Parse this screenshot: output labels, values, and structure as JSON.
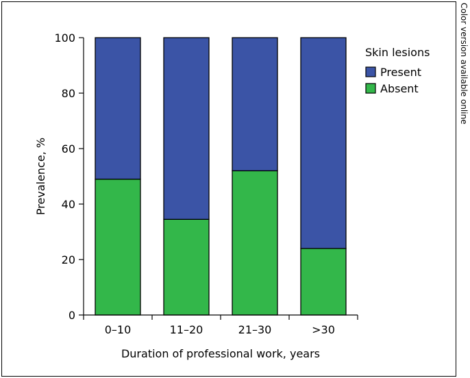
{
  "side_note": "Color version available online",
  "chart_data": {
    "type": "bar",
    "stacked": true,
    "categories": [
      "0–10",
      "11–20",
      "21–30",
      ">30"
    ],
    "series": [
      {
        "name": "Absent",
        "color": "#33b74a",
        "values": [
          49,
          34.5,
          52,
          24
        ]
      },
      {
        "name": "Present",
        "color": "#3b54a6",
        "values": [
          51,
          65.5,
          48,
          76
        ]
      }
    ],
    "title": "",
    "xlabel": "Duration of professional work, years",
    "ylabel": "Prevalence, %",
    "ylim": [
      0,
      100
    ],
    "yticks": [
      0,
      20,
      40,
      60,
      80,
      100
    ],
    "grid": false,
    "legend": {
      "title": "Skin lesions",
      "position": "top-right",
      "order": [
        "Present",
        "Absent"
      ]
    }
  }
}
